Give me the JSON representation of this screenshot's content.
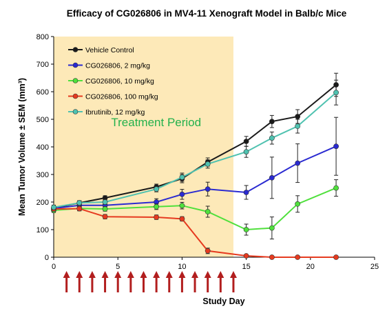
{
  "chart_data": {
    "type": "line",
    "title": "Efficacy of CG026806 in MV4-11 Xenograft Model in Balb/c Mice",
    "xlabel": "Study Day",
    "ylabel": "Mean Tumor Volume ± SEM (mm³)",
    "xlim": [
      0,
      25
    ],
    "ylim": [
      0,
      800
    ],
    "x_ticks": [
      0,
      5,
      10,
      15,
      20,
      25
    ],
    "y_ticks": [
      0,
      100,
      200,
      300,
      400,
      500,
      600,
      700,
      800
    ],
    "x_tick_labels": [
      "0",
      "5",
      "10",
      "15",
      "20",
      "25"
    ],
    "y_tick_labels": [
      "0",
      "100",
      "200",
      "300",
      "400",
      "500",
      "600",
      "700",
      "800"
    ],
    "grid": false,
    "legend_position": "top-left",
    "shaded_region": {
      "x_start": 0,
      "x_end": 14,
      "label": "Treatment Period",
      "color": "#fde9b8",
      "label_color": "#22b14c"
    },
    "dosing_days": [
      1,
      2,
      3,
      4,
      5,
      6,
      7,
      8,
      9,
      10,
      11,
      12,
      13,
      14
    ],
    "arrow_color": "#b21e1e",
    "series": [
      {
        "name": "Vehicle Control",
        "color": "#1a1a1a",
        "x": [
          0,
          2,
          4,
          8,
          10,
          12,
          15,
          17,
          19,
          22
        ],
        "y": [
          178,
          197,
          215,
          255,
          285,
          345,
          420,
          492,
          510,
          625
        ],
        "err": [
          8,
          8,
          8,
          10,
          15,
          15,
          18,
          22,
          25,
          42
        ]
      },
      {
        "name": "CG026806, 2 mg/kg",
        "color": "#2a2ad1",
        "x": [
          0,
          2,
          4,
          8,
          10,
          12,
          15,
          17,
          19,
          22
        ],
        "y": [
          177,
          188,
          188,
          200,
          228,
          247,
          235,
          288,
          341,
          402
        ],
        "err": [
          8,
          8,
          10,
          12,
          18,
          25,
          25,
          75,
          70,
          105
        ]
      },
      {
        "name": "CG026806, 10 mg/kg",
        "color": "#4fe03c",
        "x": [
          0,
          2,
          4,
          8,
          10,
          12,
          15,
          17,
          19,
          22
        ],
        "y": [
          170,
          177,
          175,
          183,
          187,
          165,
          100,
          106,
          193,
          251
        ],
        "err": [
          8,
          8,
          8,
          10,
          12,
          20,
          20,
          40,
          30,
          30
        ]
      },
      {
        "name": "CG026806, 100 mg/kg",
        "color": "#e63a1f",
        "x": [
          0,
          2,
          4,
          8,
          10,
          12,
          15,
          17,
          19,
          22
        ],
        "y": [
          175,
          176,
          147,
          145,
          139,
          23,
          5,
          0,
          0,
          0
        ],
        "err": [
          8,
          8,
          8,
          8,
          8,
          10,
          3,
          0,
          0,
          0
        ]
      },
      {
        "name": "Ibrutinib, 12 mg/kg",
        "color": "#4fc2b0",
        "x": [
          0,
          2,
          4,
          8,
          10,
          12,
          15,
          17,
          19,
          22
        ],
        "y": [
          181,
          197,
          200,
          247,
          290,
          338,
          382,
          432,
          475,
          597
        ],
        "err": [
          8,
          8,
          8,
          10,
          15,
          15,
          20,
          22,
          25,
          45
        ]
      }
    ]
  }
}
